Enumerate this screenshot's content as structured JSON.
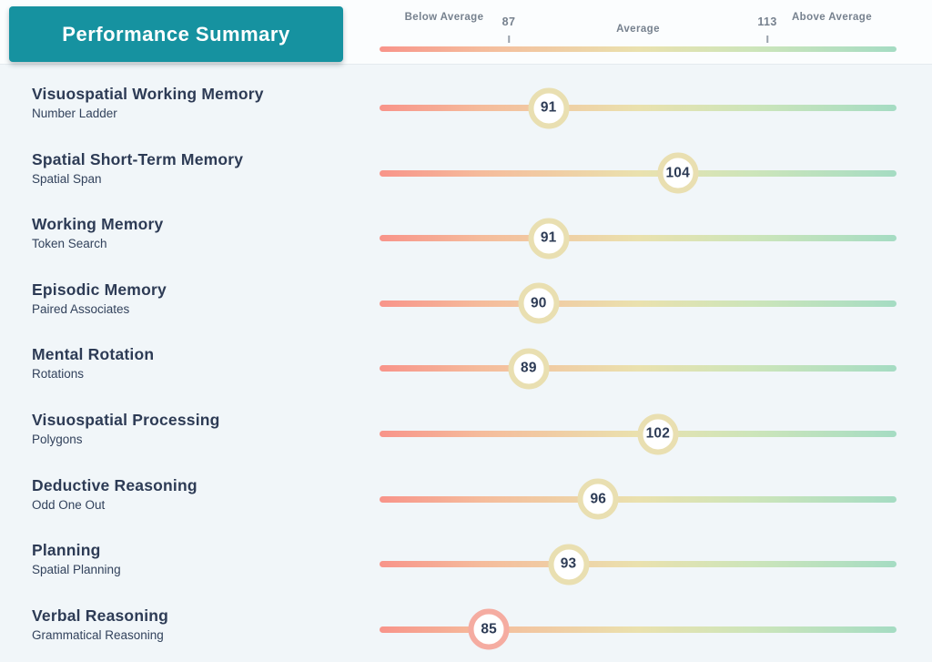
{
  "header": {
    "title": "Performance Summary"
  },
  "axis": {
    "below_label": "Below Average",
    "average_label": "Average",
    "above_label": "Above Average",
    "low_tick_label": "87",
    "high_tick_label": "113",
    "low_tick_value": 87,
    "high_tick_value": 113,
    "scale_min": 74,
    "scale_max": 126
  },
  "colors": {
    "accent_teal": "#1692a0",
    "title_text": "#2d3b55",
    "axis_text": "#76818e",
    "gradient_stops": [
      "#f8948a 0%",
      "#f5bc9c 20%",
      "#eae1ae 50%",
      "#cde5ba 72%",
      "#a5dcc3 100%"
    ],
    "marker_below_average": "#f5aca1",
    "marker_average": "#e9dfb1",
    "marker_above_average": "#a6dcc3"
  },
  "rows": [
    {
      "title": "Visuospatial Working Memory",
      "subtitle": "Number Ladder",
      "score": 91
    },
    {
      "title": "Spatial Short-Term Memory",
      "subtitle": "Spatial Span",
      "score": 104
    },
    {
      "title": "Working Memory",
      "subtitle": "Token Search",
      "score": 91
    },
    {
      "title": "Episodic Memory",
      "subtitle": "Paired Associates",
      "score": 90
    },
    {
      "title": "Mental Rotation",
      "subtitle": "Rotations",
      "score": 89
    },
    {
      "title": "Visuospatial Processing",
      "subtitle": "Polygons",
      "score": 102
    },
    {
      "title": "Deductive Reasoning",
      "subtitle": "Odd One Out",
      "score": 96
    },
    {
      "title": "Planning",
      "subtitle": "Spatial Planning",
      "score": 93
    },
    {
      "title": "Verbal Reasoning",
      "subtitle": "Grammatical Reasoning",
      "score": 85
    }
  ],
  "chart_data": {
    "type": "scatter",
    "title": "Performance Summary",
    "categories": [
      "Visuospatial Working Memory (Number Ladder)",
      "Spatial Short-Term Memory (Spatial Span)",
      "Working Memory (Token Search)",
      "Episodic Memory (Paired Associates)",
      "Mental Rotation (Rotations)",
      "Visuospatial Processing (Polygons)",
      "Deductive Reasoning (Odd One Out)",
      "Planning (Spatial Planning)",
      "Verbal Reasoning (Grammatical Reasoning)"
    ],
    "values": [
      91,
      104,
      91,
      90,
      89,
      102,
      96,
      93,
      85
    ],
    "xlabel": "",
    "ylabel": "",
    "xlim": [
      74,
      126
    ],
    "x_ticks": [
      87,
      113
    ],
    "zone_labels": [
      "Below Average",
      "Average",
      "Above Average"
    ],
    "legend_position": "top",
    "grid": false
  }
}
